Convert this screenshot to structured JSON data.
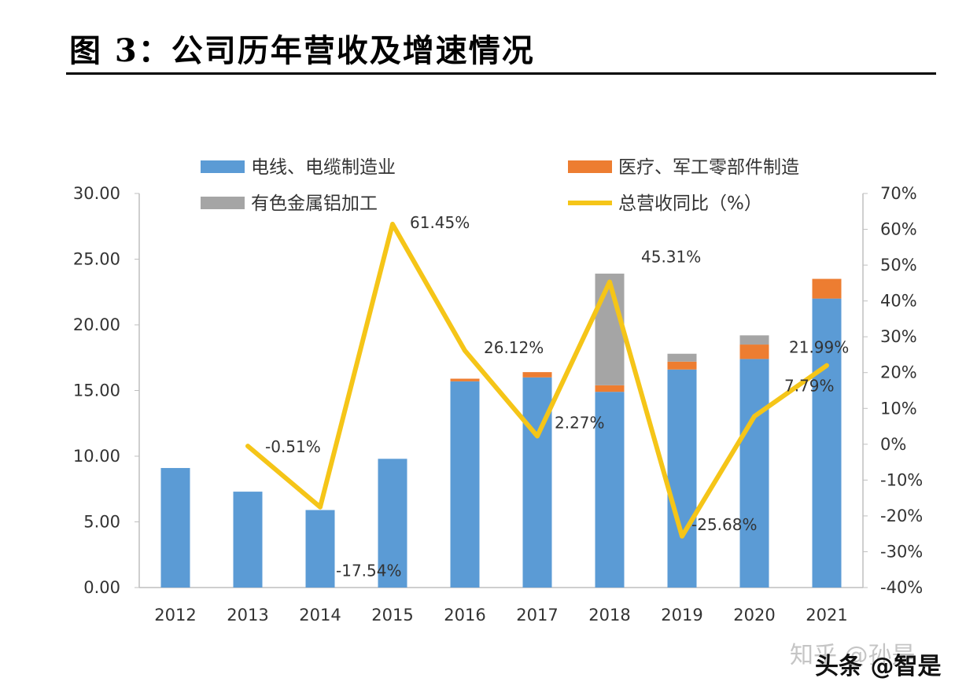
{
  "header": {
    "title": "图 3：公司历年营收及增速情况"
  },
  "watermark": {
    "zhihu": "知乎 @孙是",
    "toutiao": "头条 @智是"
  },
  "colors": {
    "cable": "#5b9bd5",
    "medical": "#ed7d31",
    "aluminum": "#a5a5a5",
    "growth": "#f5c518"
  },
  "chart_data": {
    "type": "bar+line",
    "categories": [
      "2012",
      "2013",
      "2014",
      "2015",
      "2016",
      "2017",
      "2018",
      "2019",
      "2020",
      "2021"
    ],
    "series": [
      {
        "name": "电线、电缆制造业",
        "kind": "stacked-bar",
        "axis": "left",
        "values": [
          9.1,
          7.3,
          5.9,
          9.8,
          15.7,
          16.0,
          14.9,
          16.6,
          17.4,
          22.0
        ]
      },
      {
        "name": "医疗、军工零部件制造",
        "kind": "stacked-bar",
        "axis": "left",
        "values": [
          0,
          0,
          0,
          0,
          0.2,
          0.4,
          0.5,
          0.6,
          1.1,
          1.5
        ]
      },
      {
        "name": "有色金属铝加工",
        "kind": "stacked-bar",
        "axis": "left",
        "values": [
          0,
          0,
          0,
          0,
          0,
          0,
          8.5,
          0.6,
          0.7,
          0
        ]
      },
      {
        "name": "总营收同比（%）",
        "kind": "line",
        "axis": "right",
        "values": [
          null,
          -0.51,
          -17.54,
          61.45,
          26.12,
          2.27,
          45.31,
          -25.68,
          7.79,
          21.99
        ],
        "labels": [
          "",
          "-0.51%",
          "-17.54%",
          "61.45%",
          "26.12%",
          "2.27%",
          "45.31%",
          "-25.68%",
          "7.79%",
          "21.99%"
        ]
      }
    ],
    "left_axis": {
      "min": 0,
      "max": 30,
      "step": 5,
      "tick_labels": [
        "0.00",
        "5.00",
        "10.00",
        "15.00",
        "20.00",
        "25.00",
        "30.00"
      ]
    },
    "right_axis": {
      "min": -40,
      "max": 70,
      "step": 10,
      "tick_labels": [
        "-40%",
        "-30%",
        "-20%",
        "-10%",
        "0%",
        "10%",
        "20%",
        "30%",
        "40%",
        "50%",
        "60%",
        "70%"
      ]
    },
    "legend": [
      "电线、电缆制造业",
      "医疗、军工零部件制造",
      "有色金属铝加工",
      "总营收同比（%）"
    ],
    "legend_position": "top"
  }
}
